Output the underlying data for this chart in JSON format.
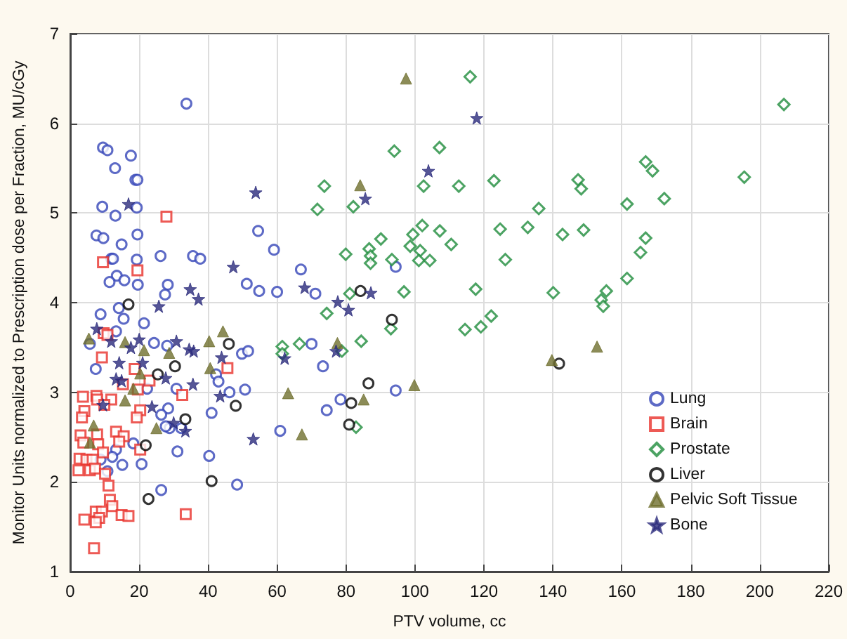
{
  "chart_data": {
    "type": "scatter",
    "xlabel": "PTV volume, cc",
    "ylabel": "Monitor Units normalized to Prescription dose per Fraction, MU/cGy",
    "xlim": [
      0,
      220
    ],
    "ylim": [
      1,
      7
    ],
    "xticks": [
      0,
      20,
      40,
      60,
      80,
      100,
      120,
      140,
      160,
      180,
      200,
      220
    ],
    "yticks": [
      1,
      2,
      3,
      4,
      5,
      6,
      7
    ],
    "grid": true,
    "legend": "bottom right",
    "series": [
      {
        "name": "Lung",
        "color": "#3445b8",
        "marker": "circle",
        "x": [
          9.5,
          10.8,
          17.6,
          13.0,
          18.9,
          19.5,
          9.3,
          13.1,
          19.3,
          7.6,
          9.6,
          19.5,
          14.9,
          11.9,
          12.4,
          19.3,
          26.2,
          35.6,
          37.7,
          13.5,
          11.4,
          15.7,
          19.6,
          28.3,
          27.5,
          54.5,
          59.1,
          66.9,
          51.2,
          54.8,
          60.0,
          14.1,
          8.8,
          33.7,
          71.1,
          94.4,
          70.0,
          73.3,
          78.4,
          74.4,
          94.4,
          60.9,
          15.5,
          21.4,
          5.7,
          13.3,
          24.3,
          28.1,
          49.8,
          51.6,
          7.4,
          42.3,
          43.0,
          22.3,
          30.8,
          50.7,
          46.2,
          28.4,
          41.0,
          26.4,
          28.8,
          32.2,
          27.7,
          18.3,
          13.3,
          12.2,
          31.1,
          40.3,
          20.7,
          15.1,
          10.8,
          26.4,
          48.4,
          8.8
        ],
        "values": [
          5.73,
          5.7,
          5.64,
          5.5,
          5.37,
          5.37,
          5.07,
          4.97,
          5.06,
          4.75,
          4.72,
          4.76,
          4.65,
          4.49,
          4.49,
          4.48,
          4.52,
          4.52,
          4.49,
          4.3,
          4.23,
          4.25,
          4.2,
          4.2,
          4.09,
          4.8,
          4.59,
          4.37,
          4.21,
          4.13,
          4.12,
          3.94,
          3.87,
          6.22,
          4.1,
          4.4,
          3.54,
          3.29,
          2.92,
          2.8,
          3.02,
          2.57,
          3.82,
          3.77,
          3.54,
          3.68,
          3.55,
          3.52,
          3.43,
          3.46,
          3.26,
          3.2,
          3.12,
          3.04,
          3.04,
          3.03,
          3.0,
          2.82,
          2.77,
          2.75,
          2.6,
          2.6,
          2.62,
          2.43,
          2.36,
          2.28,
          2.34,
          2.29,
          2.2,
          2.19,
          2.12,
          1.91,
          1.97,
          2.25
        ]
      },
      {
        "name": "Brain",
        "color": "#e8312b",
        "marker": "square",
        "x": [
          27.9,
          9.5,
          19.5,
          9.7,
          10.8,
          9.2,
          18.7,
          23.0,
          45.6,
          15.3,
          19.6,
          32.5,
          3.7,
          7.6,
          7.8,
          11.9,
          9.9,
          4.1,
          3.4,
          20.3,
          19.3,
          13.3,
          15.5,
          3.0,
          7.8,
          14.2,
          3.8,
          8.1,
          9.5,
          20.3,
          2.7,
          4.7,
          6.5,
          2.4,
          5.7,
          7.2,
          10.1,
          11.1,
          11.5,
          12.2,
          7.4,
          9.2,
          8.4,
          14.9,
          16.9,
          4.1,
          7.4,
          33.5,
          6.9
        ],
        "values": [
          4.96,
          4.45,
          4.36,
          3.66,
          3.64,
          3.39,
          3.26,
          3.13,
          3.27,
          3.09,
          3.03,
          2.97,
          2.95,
          2.96,
          2.92,
          2.92,
          2.86,
          2.79,
          2.72,
          2.8,
          2.72,
          2.56,
          2.51,
          2.52,
          2.53,
          2.45,
          2.44,
          2.42,
          2.33,
          2.36,
          2.26,
          2.25,
          2.25,
          2.13,
          2.13,
          2.15,
          2.09,
          1.96,
          1.8,
          1.73,
          1.67,
          1.67,
          1.6,
          1.63,
          1.62,
          1.58,
          1.55,
          1.64,
          1.26
        ]
      },
      {
        "name": "Prostate",
        "color": "#1f8c3c",
        "marker": "diamond",
        "x": [
          94.0,
          107.1,
          73.7,
          102.5,
          112.7,
          122.9,
          71.7,
          82.1,
          135.9,
          102.1,
          99.4,
          107.2,
          124.7,
          132.7,
          90.1,
          98.6,
          101.5,
          110.5,
          79.9,
          86.7,
          87.1,
          87.1,
          93.3,
          101.1,
          104.3,
          126.2,
          81.1,
          96.8,
          117.6,
          140.1,
          74.4,
          122.1,
          119.1,
          114.5,
          93.0,
          66.5,
          84.4,
          61.5,
          61.5,
          78.8,
          82.9,
          207.0,
          166.9,
          168.9,
          195.5,
          147.3,
          148.2,
          161.5,
          172.3,
          142.8,
          148.9,
          166.9,
          165.4,
          161.5,
          155.5,
          154.0,
          154.6,
          116.0
        ],
        "values": [
          5.69,
          5.73,
          5.3,
          5.3,
          5.3,
          5.36,
          5.04,
          5.07,
          5.05,
          4.86,
          4.76,
          4.8,
          4.82,
          4.84,
          4.71,
          4.63,
          4.58,
          4.65,
          4.54,
          4.6,
          4.52,
          4.44,
          4.48,
          4.47,
          4.47,
          4.48,
          4.1,
          4.12,
          4.15,
          4.11,
          3.88,
          3.85,
          3.73,
          3.7,
          3.71,
          3.54,
          3.57,
          3.51,
          3.43,
          3.46,
          2.61,
          6.21,
          5.57,
          5.47,
          5.4,
          5.37,
          5.27,
          5.1,
          5.16,
          4.76,
          4.81,
          4.72,
          4.56,
          4.27,
          4.13,
          4.03,
          3.96,
          6.52
        ]
      },
      {
        "name": "Liver",
        "color": "#000000",
        "marker": "circle",
        "x": [
          16.9,
          46.0,
          25.4,
          30.4,
          48.0,
          33.4,
          21.9,
          41.0,
          22.7,
          84.2,
          93.3,
          86.5,
          81.5,
          80.9,
          141.8
        ],
        "values": [
          3.98,
          3.54,
          3.2,
          3.29,
          2.85,
          2.7,
          2.41,
          2.01,
          1.81,
          4.13,
          3.81,
          3.1,
          2.88,
          2.64,
          3.32
        ]
      },
      {
        "name": "Pelvic Soft Tissue",
        "color": "#6f6f2e",
        "marker": "triangle",
        "x": [
          5.4,
          15.9,
          21.4,
          28.7,
          40.3,
          44.3,
          40.6,
          18.3,
          15.9,
          6.8,
          5.7,
          25.0,
          63.2,
          67.2,
          20.3,
          84.1,
          77.5,
          85.1,
          99.8,
          139.7,
          152.8,
          97.4
        ],
        "values": [
          3.6,
          3.56,
          3.47,
          3.44,
          3.57,
          3.68,
          3.27,
          3.04,
          2.91,
          2.63,
          2.44,
          2.6,
          2.99,
          2.53,
          3.21,
          5.31,
          3.55,
          2.92,
          3.08,
          3.36,
          3.51,
          6.5
        ]
      },
      {
        "name": "Bone",
        "color": "#2b2b7c",
        "marker": "star",
        "x": [
          16.9,
          53.8,
          47.3,
          34.8,
          37.2,
          25.7,
          68.0,
          7.7,
          11.9,
          17.6,
          20.0,
          30.8,
          34.5,
          35.8,
          43.9,
          14.2,
          21.0,
          13.3,
          14.9,
          27.7,
          35.6,
          43.5,
          9.5,
          23.7,
          30.0,
          33.4,
          53.1,
          62.2,
          117.9,
          103.9,
          85.6,
          87.2,
          77.6,
          80.7,
          77.1
        ],
        "values": [
          5.1,
          5.23,
          4.4,
          4.15,
          4.04,
          3.96,
          4.17,
          3.71,
          3.57,
          3.5,
          3.59,
          3.57,
          3.48,
          3.46,
          3.39,
          3.33,
          3.33,
          3.15,
          3.13,
          3.16,
          3.09,
          2.96,
          2.86,
          2.84,
          2.66,
          2.57,
          2.48,
          3.38,
          6.06,
          5.47,
          5.16,
          4.11,
          4.01,
          3.92,
          3.46
        ]
      }
    ]
  }
}
